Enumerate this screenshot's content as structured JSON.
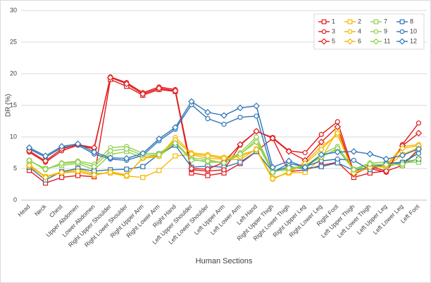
{
  "chart_data": {
    "type": "line",
    "y_label": "DR (%)",
    "x_label": "Human Sections",
    "categories": [
      "Head",
      "Neck",
      "Chest",
      "Upper Abdomen",
      "Lower Abdomen",
      "Right Upper Shoulder",
      "Right Lower Shoulder",
      "Right Upper Arm",
      "Right Lower Arm",
      "Right Hand",
      "Left Upper Shoulder",
      "Left Lower Shoulder",
      "Left Upper Arm",
      "Left Lower Arm",
      "Left Hand",
      "Right Upper Thigh",
      "Right Lower Thigh",
      "Right Upper Leg",
      "Right Lower Leg",
      "Right Foot",
      "Left Upper Thigh",
      "Left Lower Thigh",
      "Left Upper Leg",
      "Left Lower Leg",
      "Left Foot"
    ],
    "ylim": [
      0,
      30
    ],
    "yticks": [
      0,
      5,
      10,
      15,
      20,
      25,
      30
    ],
    "grid": true,
    "legend": "top-right",
    "series": [
      {
        "name": "1",
        "color": "#e31a1c",
        "marker": "square",
        "values": [
          4.7,
          2.7,
          3.6,
          3.9,
          3.7,
          19.1,
          18.0,
          16.6,
          17.5,
          17.2,
          4.3,
          3.9,
          4.3,
          5.8,
          7.7,
          9.8,
          4.5,
          4.8,
          5.5,
          6.0,
          3.6,
          4.3,
          4.6,
          5.5,
          8.1
        ]
      },
      {
        "name": "2",
        "color": "#f5b800",
        "marker": "square",
        "values": [
          5.6,
          3.7,
          4.5,
          4.9,
          4.2,
          4.3,
          3.8,
          3.6,
          4.7,
          7.0,
          7.2,
          6.6,
          6.5,
          6.4,
          8.1,
          3.5,
          4.3,
          4.4,
          6.6,
          11.0,
          4.2,
          5.3,
          5.2,
          7.2,
          8.3
        ]
      },
      {
        "name": "7",
        "color": "#92d050",
        "marker": "square",
        "values": [
          6.2,
          5.0,
          5.5,
          5.8,
          4.8,
          7.2,
          7.7,
          6.7,
          7.0,
          8.8,
          6.7,
          6.4,
          5.9,
          7.2,
          9.6,
          4.5,
          5.0,
          5.1,
          7.0,
          8.0,
          4.8,
          5.6,
          5.2,
          6.0,
          6.0
        ]
      },
      {
        "name": "8",
        "color": "#2e75b6",
        "marker": "square",
        "values": [
          5.2,
          3.2,
          4.5,
          5.0,
          4.6,
          4.8,
          4.9,
          5.3,
          7.3,
          8.7,
          5.2,
          5.4,
          5.2,
          6.0,
          7.7,
          4.5,
          5.3,
          5.0,
          5.3,
          5.9,
          4.7,
          5.2,
          5.8,
          5.9,
          6.5
        ]
      },
      {
        "name": "3",
        "color": "#e31a1c",
        "marker": "circle",
        "values": [
          7.6,
          6.0,
          7.8,
          8.7,
          8.1,
          19.5,
          18.6,
          17.0,
          17.9,
          17.5,
          4.8,
          4.6,
          4.8,
          8.7,
          10.9,
          9.9,
          7.8,
          7.5,
          10.4,
          12.4,
          4.5,
          5.0,
          4.4,
          8.8,
          12.2
        ]
      },
      {
        "name": "4",
        "color": "#f5b800",
        "marker": "circle",
        "values": [
          5.3,
          3.7,
          4.3,
          4.5,
          3.9,
          4.5,
          4.0,
          6.6,
          6.9,
          9.9,
          7.5,
          7.2,
          6.8,
          7.2,
          7.9,
          3.3,
          4.5,
          6.0,
          8.5,
          10.3,
          4.5,
          5.0,
          5.5,
          8.5,
          8.8
        ]
      },
      {
        "name": "9",
        "color": "#92d050",
        "marker": "circle",
        "values": [
          6.3,
          4.8,
          5.9,
          6.2,
          5.7,
          8.3,
          8.5,
          7.4,
          7.4,
          9.2,
          6.5,
          6.0,
          6.0,
          7.5,
          10.0,
          4.6,
          4.8,
          5.4,
          7.2,
          8.5,
          4.9,
          5.9,
          6.0,
          5.4,
          7.8
        ]
      },
      {
        "name": "10",
        "color": "#2e75b6",
        "marker": "circle",
        "values": [
          8.1,
          6.8,
          8.3,
          8.7,
          7.3,
          6.5,
          6.3,
          7.1,
          9.4,
          11.2,
          15.1,
          12.9,
          12.0,
          13.1,
          13.3,
          4.4,
          5.8,
          5.3,
          6.2,
          6.5,
          6.3,
          4.8,
          5.8,
          6.0,
          7.4
        ]
      },
      {
        "name": "5",
        "color": "#e31a1c",
        "marker": "diamond",
        "values": [
          7.8,
          6.2,
          8.1,
          8.8,
          8.3,
          19.4,
          18.4,
          16.8,
          17.7,
          17.3,
          5.0,
          4.9,
          6.0,
          8.8,
          10.9,
          9.8,
          7.7,
          6.3,
          9.2,
          11.6,
          4.1,
          5.3,
          4.6,
          8.6,
          10.6
        ]
      },
      {
        "name": "6",
        "color": "#f5b800",
        "marker": "diamond",
        "values": [
          5.5,
          3.6,
          4.4,
          4.6,
          4.0,
          4.4,
          3.9,
          6.7,
          7.2,
          9.5,
          7.3,
          7.0,
          6.6,
          6.9,
          8.0,
          3.4,
          4.4,
          5.8,
          8.0,
          10.6,
          4.3,
          5.2,
          5.4,
          8.2,
          8.6
        ]
      },
      {
        "name": "11",
        "color": "#92d050",
        "marker": "diamond",
        "values": [
          6.3,
          4.9,
          5.8,
          6.0,
          5.3,
          7.8,
          8.1,
          7.1,
          7.2,
          9.0,
          6.3,
          6.2,
          5.9,
          7.3,
          9.2,
          4.4,
          5.1,
          5.3,
          6.8,
          8.2,
          4.8,
          5.7,
          5.6,
          5.7,
          6.5
        ]
      },
      {
        "name": "12",
        "color": "#2e75b6",
        "marker": "diamond",
        "values": [
          8.3,
          7.0,
          8.5,
          8.9,
          7.6,
          6.7,
          6.6,
          7.4,
          9.7,
          11.5,
          15.6,
          13.9,
          13.4,
          14.6,
          14.9,
          5.2,
          6.2,
          5.2,
          7.2,
          7.6,
          7.7,
          7.3,
          6.5,
          7.1,
          8.1
        ]
      }
    ]
  }
}
